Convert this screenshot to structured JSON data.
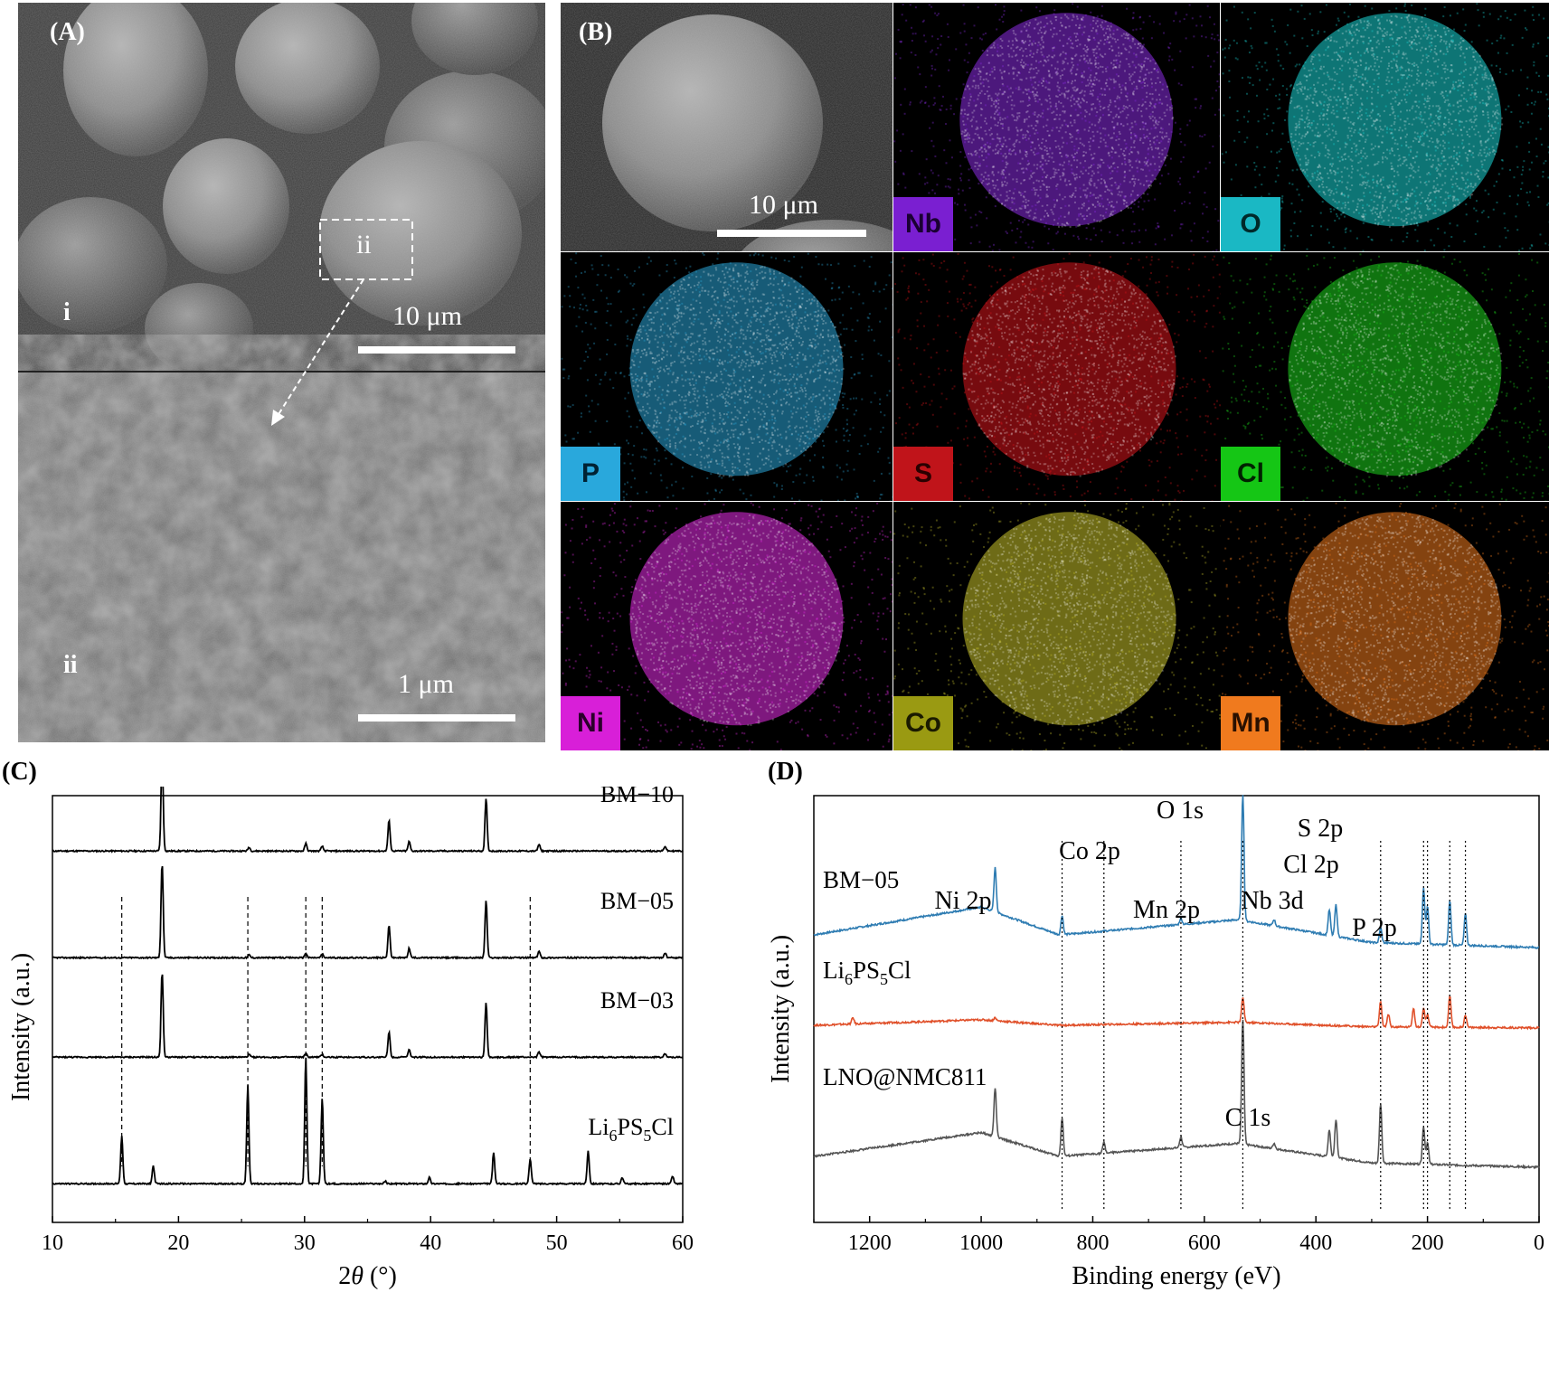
{
  "panels": {
    "A": {
      "label": "(A)",
      "top": {
        "tag": "i",
        "scale": "10 μm",
        "inset": "ii"
      },
      "bottom": {
        "tag": "ii",
        "scale": "1 μm"
      }
    },
    "B": {
      "label": "(B)",
      "sem_scale": "10 μm",
      "maps": [
        {
          "element": "Nb",
          "color": "#8a2be2",
          "tag_bg": "#7a1fd1",
          "tag_fg": "#1a0033"
        },
        {
          "element": "O",
          "color": "#19d6d6",
          "tag_bg": "#1ab8c4",
          "tag_fg": "#002a2a"
        },
        {
          "element": "P",
          "color": "#2aa5d8",
          "tag_bg": "#29a8dc",
          "tag_fg": "#002233"
        },
        {
          "element": "S",
          "color": "#d8141b",
          "tag_bg": "#c0141a",
          "tag_fg": "#2a0000"
        },
        {
          "element": "Cl",
          "color": "#1ed31e",
          "tag_bg": "#15c615",
          "tag_fg": "#002200"
        },
        {
          "element": "Ni",
          "color": "#e52be5",
          "tag_bg": "#d81fd8",
          "tag_fg": "#2a002a"
        },
        {
          "element": "Co",
          "color": "#c9c22a",
          "tag_bg": "#9a9a12",
          "tag_fg": "#1a1a00"
        },
        {
          "element": "Mn",
          "color": "#f07a1e",
          "tag_bg": "#f07a1e",
          "tag_fg": "#2a1000"
        }
      ]
    },
    "C": {
      "label": "(C)",
      "chart_data": {
        "type": "line",
        "xlabel_prefix": "2",
        "xlabel_theta": "θ",
        "xlabel_suffix": " (°)",
        "ylabel": "Intensity (a.u.)",
        "xlim": [
          10,
          60
        ],
        "xticks": [
          "10",
          "20",
          "30",
          "40",
          "50",
          "60"
        ],
        "series": [
          {
            "name": "BM−10",
            "offset": 3,
            "peaks": [
              [
                18.7,
                1.0
              ],
              [
                25.6,
                0.04
              ],
              [
                30.1,
                0.08
              ],
              [
                31.4,
                0.05
              ],
              [
                36.7,
                0.32
              ],
              [
                38.3,
                0.1
              ],
              [
                44.4,
                0.55
              ],
              [
                48.6,
                0.07
              ],
              [
                58.6,
                0.05
              ]
            ]
          },
          {
            "name": "BM−05",
            "offset": 2,
            "peaks": [
              [
                18.7,
                1.0
              ],
              [
                25.6,
                0.03
              ],
              [
                30.1,
                0.05
              ],
              [
                31.4,
                0.04
              ],
              [
                36.7,
                0.34
              ],
              [
                38.3,
                0.1
              ],
              [
                44.4,
                0.6
              ],
              [
                48.6,
                0.07
              ],
              [
                58.6,
                0.05
              ]
            ]
          },
          {
            "name": "BM−03",
            "offset": 1,
            "peaks": [
              [
                18.7,
                0.95
              ],
              [
                25.6,
                0.03
              ],
              [
                30.1,
                0.04
              ],
              [
                31.4,
                0.03
              ],
              [
                36.7,
                0.28
              ],
              [
                38.3,
                0.08
              ],
              [
                44.4,
                0.6
              ],
              [
                48.6,
                0.06
              ],
              [
                58.6,
                0.04
              ]
            ]
          },
          {
            "name_base": "Li",
            "name_sub1": "6",
            "name_mid": "PS",
            "name_sub2": "5",
            "name_end": "Cl",
            "offset": 0,
            "peaks": [
              [
                15.5,
                0.38
              ],
              [
                18.0,
                0.14
              ],
              [
                25.5,
                0.78
              ],
              [
                30.1,
                1.0
              ],
              [
                31.4,
                0.68
              ],
              [
                36.4,
                0.02
              ],
              [
                39.9,
                0.05
              ],
              [
                45.0,
                0.25
              ],
              [
                47.9,
                0.2
              ],
              [
                52.5,
                0.26
              ],
              [
                55.2,
                0.05
              ],
              [
                59.2,
                0.06
              ]
            ]
          }
        ],
        "ref_lines": [
          15.5,
          25.5,
          30.1,
          31.4,
          47.9
        ]
      }
    },
    "D": {
      "label": "(D)",
      "chart_data": {
        "type": "line",
        "xlabel": "Binding energy (eV)",
        "ylabel": "Intensity (a.u.)",
        "xlim": [
          1300,
          0
        ],
        "xticks": [
          "1200",
          "1000",
          "800",
          "600",
          "400",
          "200",
          "0"
        ],
        "series": [
          {
            "name": "BM−05",
            "color": "#2e7cb2",
            "offset": 2,
            "peaks": [
              [
                975,
                0.35
              ],
              [
                855,
                0.15
              ],
              [
                642,
                0.05
              ],
              [
                531,
                1.0
              ],
              [
                475,
                0.05
              ],
              [
                376,
                0.2
              ],
              [
                364,
                0.25
              ],
              [
                284,
                0.12
              ],
              [
                207,
                0.45
              ],
              [
                200,
                0.3
              ],
              [
                160,
                0.35
              ],
              [
                132,
                0.25
              ]
            ]
          },
          {
            "name_base": "Li",
            "name_sub1": "6",
            "name_mid": "PS",
            "name_sub2": "5",
            "name_end": "Cl",
            "color": "#e0502a",
            "offset": 1,
            "peaks": [
              [
                1230,
                0.1
              ],
              [
                975,
                0.05
              ],
              [
                531,
                0.4
              ],
              [
                284,
                0.4
              ],
              [
                270,
                0.2
              ],
              [
                225,
                0.3
              ],
              [
                207,
                0.3
              ],
              [
                200,
                0.2
              ],
              [
                160,
                0.5
              ],
              [
                132,
                0.2
              ]
            ]
          },
          {
            "name": "LNO@NMC811",
            "color": "#555555",
            "offset": 0,
            "peaks": [
              [
                975,
                0.45
              ],
              [
                855,
                0.35
              ],
              [
                780,
                0.1
              ],
              [
                642,
                0.1
              ],
              [
                531,
                1.15
              ],
              [
                475,
                0.05
              ],
              [
                376,
                0.25
              ],
              [
                364,
                0.35
              ],
              [
                284,
                0.55
              ],
              [
                207,
                0.35
              ],
              [
                200,
                0.2
              ]
            ]
          }
        ],
        "annotations": [
          "Ni 2p",
          "Co 2p",
          "Mn 2p",
          "O 1s",
          "Nb 3d",
          "Cl 2p",
          "S 2p",
          "P 2p",
          "C 1s"
        ],
        "ref_lines": [
          855,
          780,
          642,
          531,
          284,
          207,
          200,
          160,
          132
        ]
      }
    }
  }
}
